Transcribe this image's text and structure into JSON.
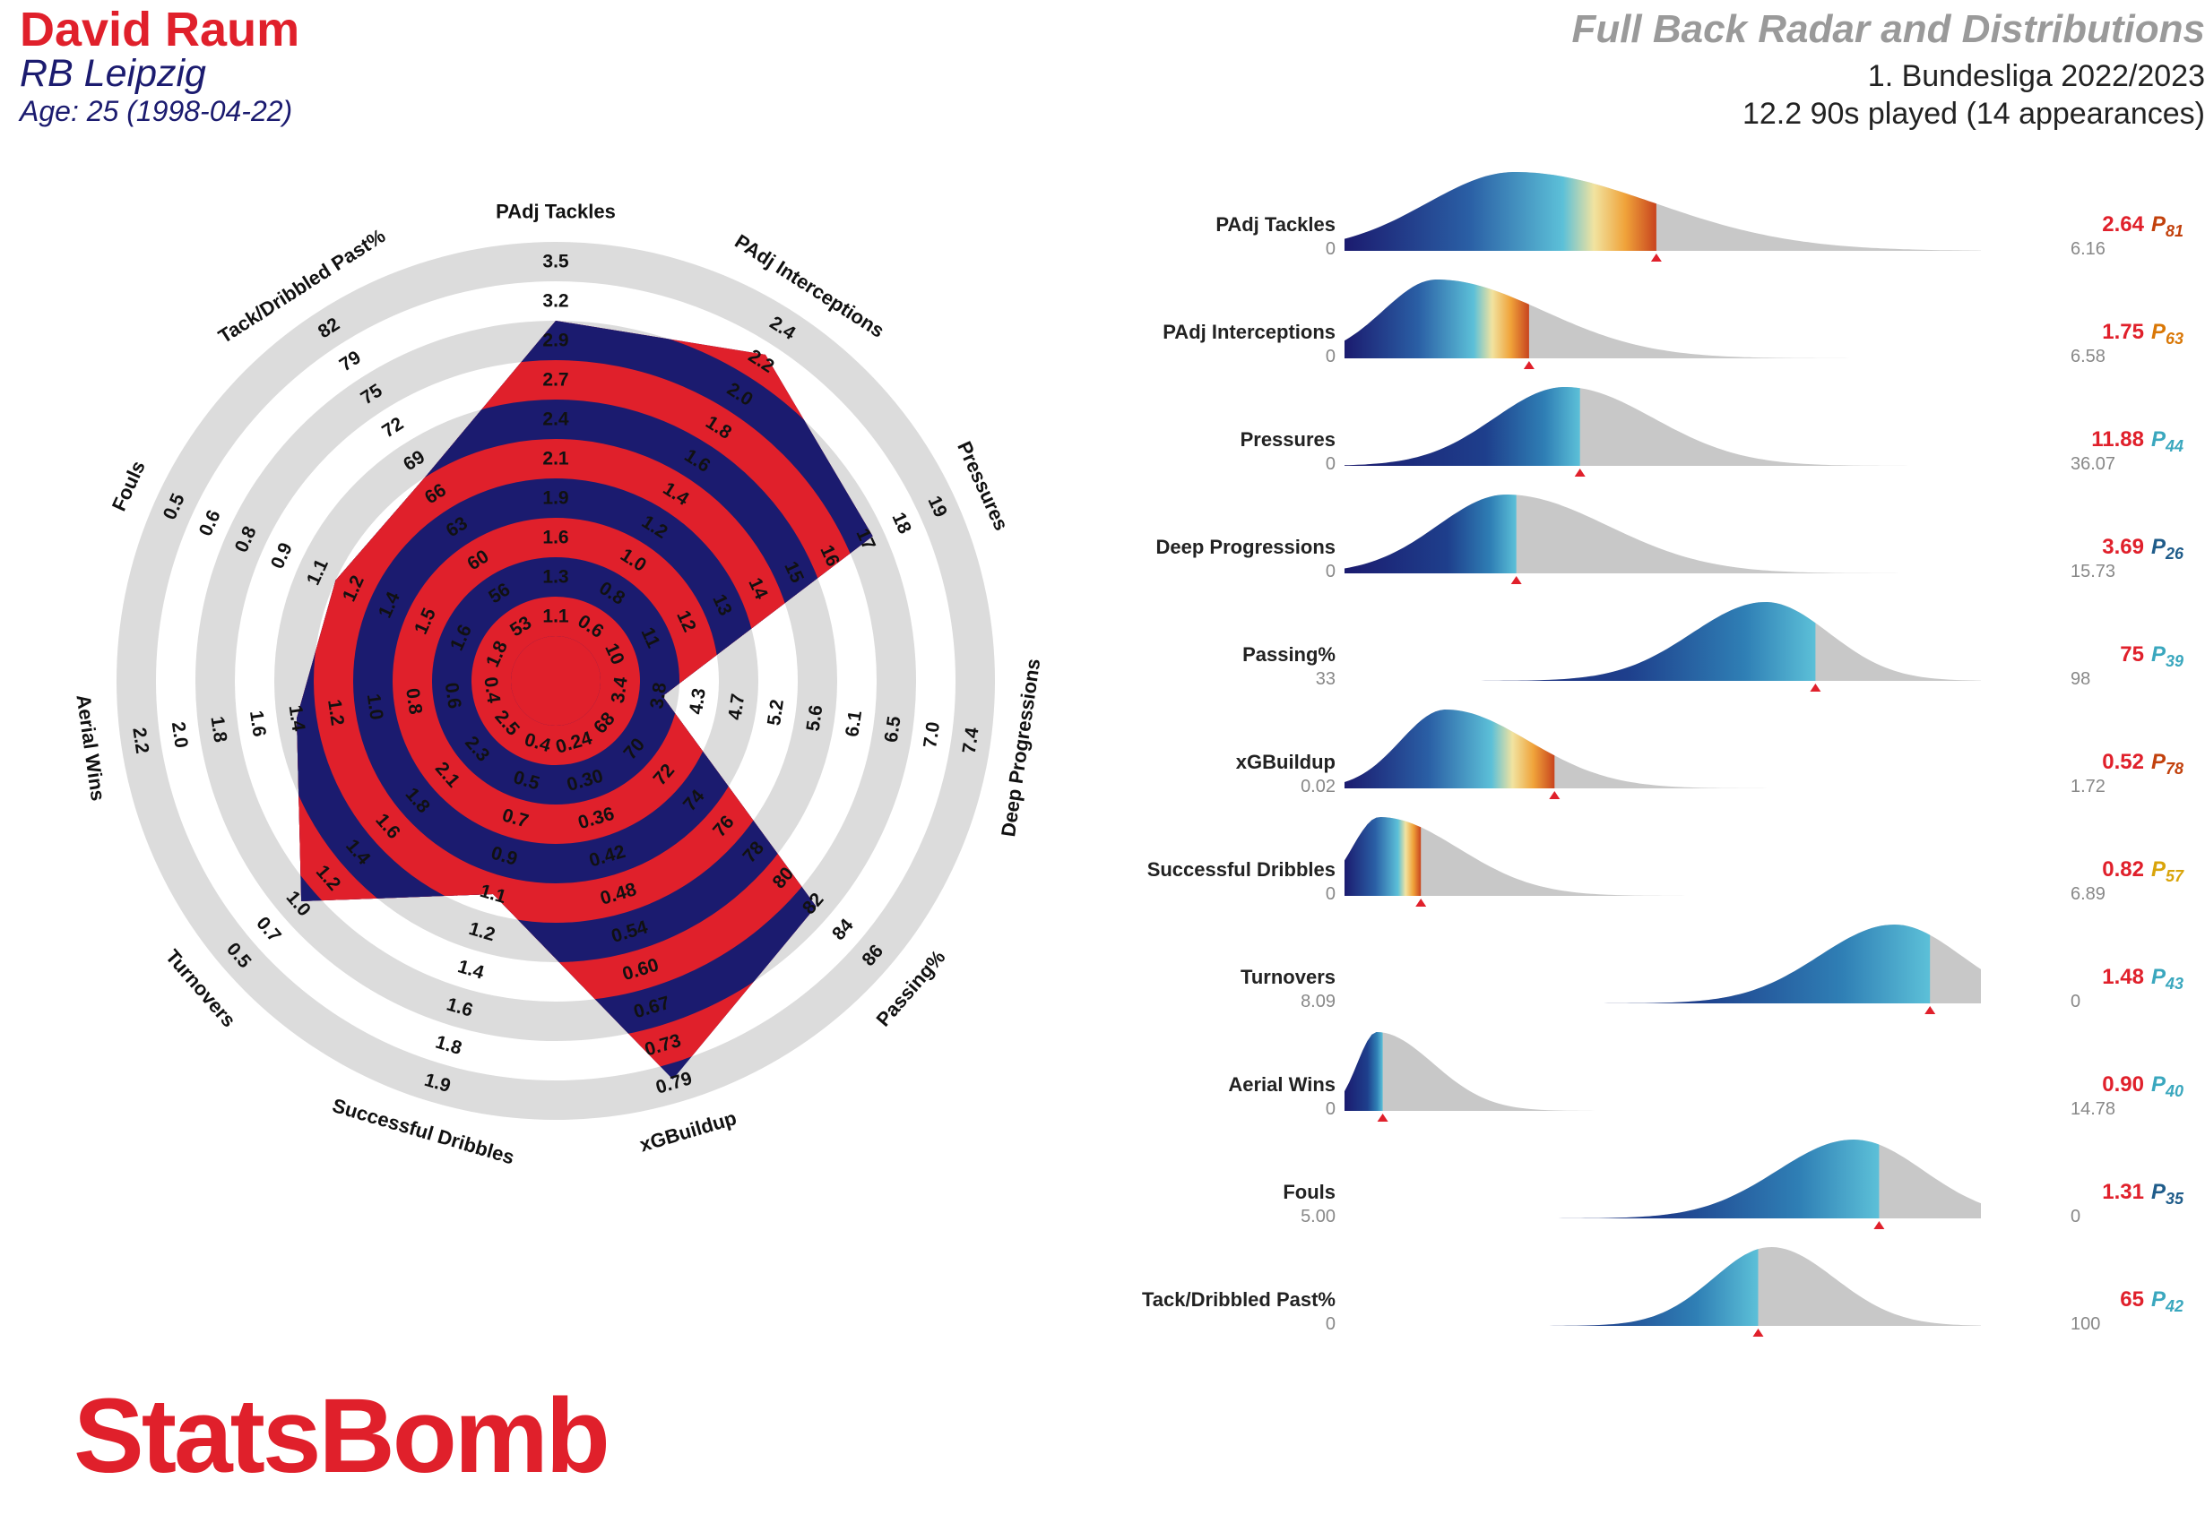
{
  "header": {
    "player_name": "David Raum",
    "team": "RB Leipzig",
    "age": "Age: 25 (1998-04-22)",
    "chart_title": "Full Back Radar and Distributions",
    "competition": "1. Bundesliga 2022/2023",
    "minutes": "12.2 90s played (14 appearances)"
  },
  "brand": {
    "logo_text": "StatsBomb"
  },
  "colors": {
    "red": "#e0202b",
    "navy": "#1b1b6f",
    "ring_grey": "#dcdcdc",
    "dist_grey": "#c8c8c8"
  },
  "chart_data": [
    {
      "type": "radar",
      "title": "",
      "axes": [
        {
          "label": "PAdj Tackles",
          "ticks": [
            "1.1",
            "1.3",
            "1.6",
            "1.9",
            "2.1",
            "2.4",
            "2.7",
            "2.9",
            "3.2",
            "3.5"
          ],
          "value": 2.64
        },
        {
          "label": "PAdj Interceptions",
          "ticks": [
            "0.6",
            "0.8",
            "1.0",
            "1.2",
            "1.4",
            "1.6",
            "1.8",
            "2.0",
            "2.2",
            "2.4"
          ],
          "value": 1.75
        },
        {
          "label": "Pressures",
          "ticks": [
            "10",
            "11",
            "12",
            "13",
            "14",
            "15",
            "16",
            "17",
            "18",
            "19"
          ],
          "value": 11.88
        },
        {
          "label": "Deep Progressions",
          "ticks": [
            "3.4",
            "3.8",
            "4.3",
            "4.7",
            "5.2",
            "5.6",
            "6.1",
            "6.5",
            "7.0",
            "7.4"
          ],
          "value": 3.69
        },
        {
          "label": "Passing%",
          "ticks": [
            "68",
            "70",
            "72",
            "74",
            "76",
            "78",
            "80",
            "82",
            "84",
            "86"
          ],
          "value": 75
        },
        {
          "label": "xGBuildup",
          "ticks": [
            "0.24",
            "0.30",
            "0.36",
            "0.42",
            "0.48",
            "0.54",
            "0.60",
            "0.67",
            "0.73",
            "0.79"
          ],
          "value": 0.52
        },
        {
          "label": "Successful Dribbles",
          "ticks": [
            "0.4",
            "0.5",
            "0.7",
            "0.9",
            "1.1",
            "1.2",
            "1.4",
            "1.6",
            "1.8",
            "1.9"
          ],
          "value": 0.82
        },
        {
          "label": "Turnovers",
          "ticks": [
            "2.5",
            "2.3",
            "2.1",
            "1.8",
            "1.6",
            "1.4",
            "1.2",
            "1.0",
            "0.7",
            "0.5"
          ],
          "value": 1.48
        },
        {
          "label": "Aerial Wins",
          "ticks": [
            "0.4",
            "0.6",
            "0.8",
            "1.0",
            "1.2",
            "1.4",
            "1.6",
            "1.8",
            "2.0",
            "2.2"
          ],
          "value": 0.9
        },
        {
          "label": "Fouls",
          "ticks": [
            "1.8",
            "1.6",
            "1.5",
            "1.4",
            "1.2",
            "1.1",
            "0.9",
            "0.8",
            "0.6",
            "0.5"
          ],
          "value": 1.31
        },
        {
          "label": "Tack/Dribbled Past%",
          "ticks": [
            "53",
            "56",
            "60",
            "63",
            "66",
            "69",
            "72",
            "75",
            "79",
            "82"
          ],
          "value": 65
        }
      ],
      "radar_levels": [
        8.0,
        8.7,
        7.7,
        1.6,
        7.6,
        9.4,
        4.5,
        7.4,
        5.5,
        5.0,
        5.0
      ]
    },
    {
      "type": "area",
      "title": "",
      "series": [
        {
          "name": "PAdj Tackles",
          "min": "0",
          "max": "6.16",
          "value": "2.64",
          "percentile": "81",
          "pct_color": "#c2410c",
          "x_range": [
            0,
            6.16
          ],
          "peak": 1.65,
          "spread_left": 0.85,
          "spread_right": 1.35,
          "marker": 0.49
        },
        {
          "name": "PAdj Interceptions",
          "min": "0",
          "max": "6.58",
          "value": "1.75",
          "percentile": "63",
          "pct_color": "#d97706",
          "x_range": [
            0,
            6.58
          ],
          "peak": 0.95,
          "spread_left": 0.55,
          "spread_right": 1.1,
          "marker": 0.29
        },
        {
          "name": "Pressures",
          "min": "0",
          "max": "36.07",
          "value": "11.88",
          "percentile": "44",
          "pct_color": "#3aa7be",
          "x_range": [
            0,
            36.07
          ],
          "peak": 12.5,
          "spread_left": 4.0,
          "spread_right": 5.0,
          "marker": 0.37
        },
        {
          "name": "Deep Progressions",
          "min": "0",
          "max": "15.73",
          "value": "3.69",
          "percentile": "26",
          "pct_color": "#1f5c8a",
          "x_range": [
            0,
            15.73
          ],
          "peak": 4.0,
          "spread_left": 1.7,
          "spread_right": 2.5,
          "marker": 0.27
        },
        {
          "name": "Passing%",
          "min": "33",
          "max": "98",
          "value": "75",
          "percentile": "39",
          "pct_color": "#3aa7be",
          "x_range": [
            33,
            98
          ],
          "peak": 76,
          "spread_left": 7.5,
          "spread_right": 6.5,
          "marker": 0.74
        },
        {
          "name": "xGBuildup",
          "min": "0.02",
          "max": "1.72",
          "value": "0.52",
          "percentile": "78",
          "pct_color": "#c2410c",
          "x_range": [
            0.02,
            1.72
          ],
          "peak": 0.29,
          "spread_left": 0.12,
          "spread_right": 0.22,
          "marker": 0.33
        },
        {
          "name": "Successful Dribbles",
          "min": "0",
          "max": "6.89",
          "value": "0.82",
          "percentile": "57",
          "pct_color": "#d9a40a",
          "x_range": [
            0,
            6.89
          ],
          "peak": 0.38,
          "spread_left": 0.3,
          "spread_right": 0.85,
          "marker": 0.12
        },
        {
          "name": "Turnovers",
          "min": "8.09",
          "max": "0",
          "value": "1.48",
          "percentile": "43",
          "pct_color": "#3aa7be",
          "x_range": [
            8.09,
            0
          ],
          "peak": 1.1,
          "spread_left": 0.95,
          "spread_right": 0.85,
          "marker": 0.92
        },
        {
          "name": "Aerial Wins",
          "min": "0",
          "max": "14.78",
          "value": "0.90",
          "percentile": "40",
          "pct_color": "#3aa7be",
          "x_range": [
            0,
            14.78
          ],
          "peak": 0.75,
          "spread_left": 0.45,
          "spread_right": 1.3,
          "marker": 0.06
        },
        {
          "name": "Fouls",
          "min": "5.00",
          "max": "0",
          "value": "1.31",
          "percentile": "35",
          "pct_color": "#1f5c8a",
          "x_range": [
            5.0,
            0
          ],
          "peak": 1.0,
          "spread_left": 0.6,
          "spread_right": 0.55,
          "marker": 0.84
        },
        {
          "name": "Tack/Dribbled Past%",
          "min": "0",
          "max": "100",
          "value": "65",
          "percentile": "42",
          "pct_color": "#3aa7be",
          "x_range": [
            0,
            100
          ],
          "peak": 67,
          "spread_left": 9,
          "spread_right": 10,
          "marker": 0.65
        }
      ]
    }
  ]
}
